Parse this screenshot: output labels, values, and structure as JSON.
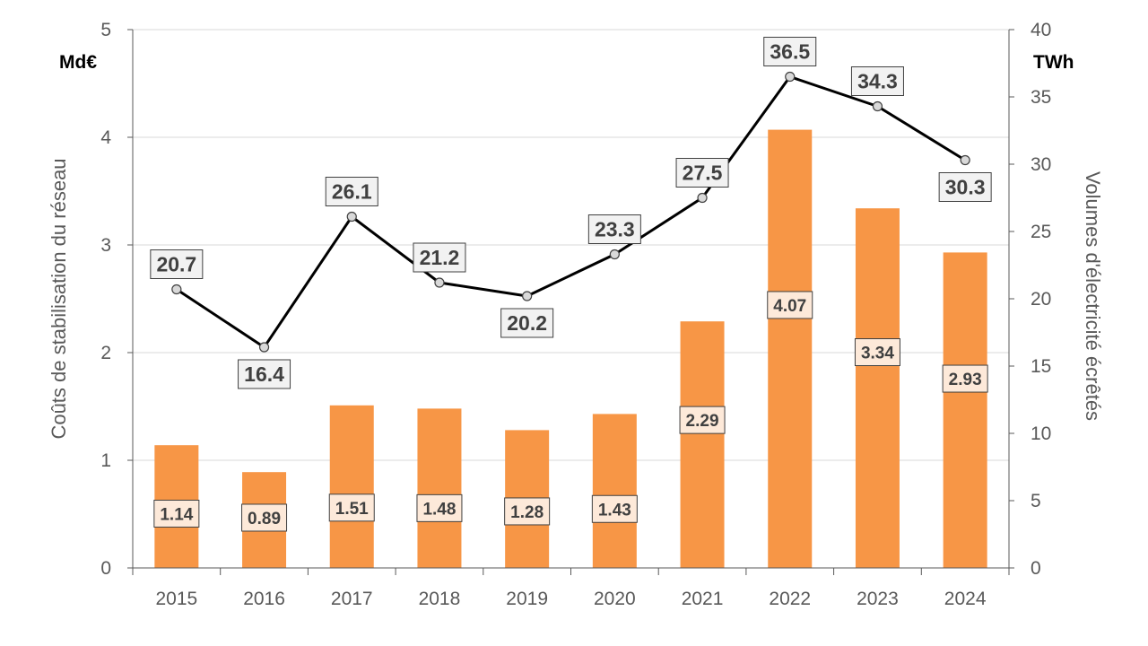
{
  "chart_data": {
    "type": "bar+line",
    "categories": [
      "2015",
      "2016",
      "2017",
      "2018",
      "2019",
      "2020",
      "2021",
      "2022",
      "2023",
      "2024"
    ],
    "series": [
      {
        "name": "Coûts de stabilisation du réseau",
        "type": "bar",
        "axis": "left",
        "values": [
          1.14,
          0.89,
          1.51,
          1.48,
          1.28,
          1.43,
          2.29,
          4.07,
          3.34,
          2.93
        ],
        "labels": [
          "1.14",
          "0.89",
          "1.51",
          "1.48",
          "1.28",
          "1.43",
          "2.29",
          "4.07",
          "3.34",
          "2.93"
        ],
        "color": "#F79646"
      },
      {
        "name": "Volumes d'électricité écrêtés",
        "type": "line",
        "axis": "right",
        "values": [
          20.7,
          16.4,
          26.1,
          21.2,
          20.2,
          23.3,
          27.5,
          36.5,
          34.3,
          30.3
        ],
        "labels": [
          "20.7",
          "16.4",
          "26.1",
          "21.2",
          "20.2",
          "23.3",
          "27.5",
          "36.5",
          "34.3",
          "30.3"
        ],
        "color": "#000000"
      }
    ],
    "left_axis": {
      "title": "Coûts de stabilisation du réseau",
      "unit": "Md€",
      "ylim": [
        0,
        5
      ],
      "ticks": [
        "0",
        "1",
        "2",
        "3",
        "4",
        "5"
      ]
    },
    "right_axis": {
      "title": "Volumes d'électricité écrêtés",
      "unit": "TWh",
      "ylim": [
        0,
        40
      ],
      "ticks": [
        "0",
        "5",
        "10",
        "15",
        "20",
        "25",
        "30",
        "35",
        "40"
      ]
    },
    "grid": true,
    "legend": "none"
  },
  "colors": {
    "bar": "#F79646",
    "bar_label_bg": "#FDE9D9",
    "line": "#000000",
    "marker_fill": "#D9D9D9",
    "line_label_bg": "#F2F2F2",
    "grid": "#D9D9D9",
    "axis": "#595959"
  }
}
